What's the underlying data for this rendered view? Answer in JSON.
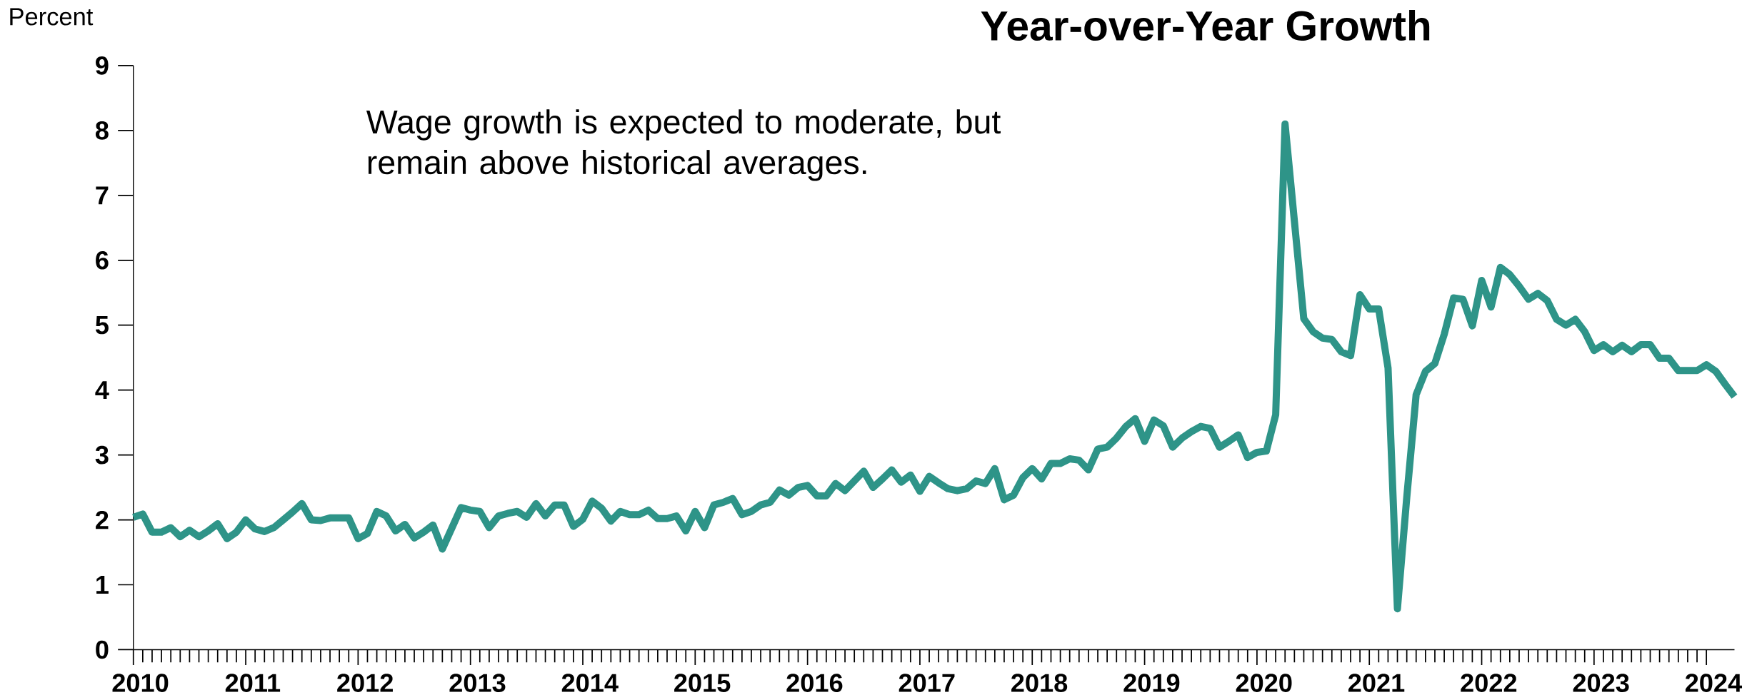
{
  "chart_data": {
    "type": "line",
    "title": "Year-over-Year Growth",
    "ylabel": "Percent",
    "annotations": [
      "Wage growth is expected to moderate, but remain above historical averages."
    ],
    "x": [
      "2010-01",
      "2010-02",
      "2010-03",
      "2010-04",
      "2010-05",
      "2010-06",
      "2010-07",
      "2010-08",
      "2010-09",
      "2010-10",
      "2010-11",
      "2010-12",
      "2011-01",
      "2011-02",
      "2011-03",
      "2011-04",
      "2011-05",
      "2011-06",
      "2011-07",
      "2011-08",
      "2011-09",
      "2011-10",
      "2011-11",
      "2011-12",
      "2012-01",
      "2012-02",
      "2012-03",
      "2012-04",
      "2012-05",
      "2012-06",
      "2012-07",
      "2012-08",
      "2012-09",
      "2012-10",
      "2012-11",
      "2012-12",
      "2013-01",
      "2013-02",
      "2013-03",
      "2013-04",
      "2013-05",
      "2013-06",
      "2013-07",
      "2013-08",
      "2013-09",
      "2013-10",
      "2013-11",
      "2013-12",
      "2014-01",
      "2014-02",
      "2014-03",
      "2014-04",
      "2014-05",
      "2014-06",
      "2014-07",
      "2014-08",
      "2014-09",
      "2014-10",
      "2014-11",
      "2014-12",
      "2015-01",
      "2015-02",
      "2015-03",
      "2015-04",
      "2015-05",
      "2015-06",
      "2015-07",
      "2015-08",
      "2015-09",
      "2015-10",
      "2015-11",
      "2015-12",
      "2016-01",
      "2016-02",
      "2016-03",
      "2016-04",
      "2016-05",
      "2016-06",
      "2016-07",
      "2016-08",
      "2016-09",
      "2016-10",
      "2016-11",
      "2016-12",
      "2017-01",
      "2017-02",
      "2017-03",
      "2017-04",
      "2017-05",
      "2017-06",
      "2017-07",
      "2017-08",
      "2017-09",
      "2017-10",
      "2017-11",
      "2017-12",
      "2018-01",
      "2018-02",
      "2018-03",
      "2018-04",
      "2018-05",
      "2018-06",
      "2018-07",
      "2018-08",
      "2018-09",
      "2018-10",
      "2018-11",
      "2018-12",
      "2019-01",
      "2019-02",
      "2019-03",
      "2019-04",
      "2019-05",
      "2019-06",
      "2019-07",
      "2019-08",
      "2019-09",
      "2019-10",
      "2019-11",
      "2019-12",
      "2020-01",
      "2020-02",
      "2020-03",
      "2020-04",
      "2020-05",
      "2020-06",
      "2020-07",
      "2020-08",
      "2020-09",
      "2020-10",
      "2020-11",
      "2020-12",
      "2021-01",
      "2021-02",
      "2021-03",
      "2021-04",
      "2021-05",
      "2021-06",
      "2021-07",
      "2021-08",
      "2021-09",
      "2021-10",
      "2021-11",
      "2021-12",
      "2022-01",
      "2022-02",
      "2022-03",
      "2022-04",
      "2022-05",
      "2022-06",
      "2022-07",
      "2022-08",
      "2022-09",
      "2022-10",
      "2022-11",
      "2022-12",
      "2023-01",
      "2023-02",
      "2023-03",
      "2023-04",
      "2023-05",
      "2023-06",
      "2023-07",
      "2023-08",
      "2023-09",
      "2023-10",
      "2023-11",
      "2023-12",
      "2024-01",
      "2024-02",
      "2024-03",
      "2024-04"
    ],
    "series": [
      {
        "color": "#2e9488",
        "values": [
          2.04,
          2.09,
          1.81,
          1.81,
          1.88,
          1.74,
          1.84,
          1.74,
          1.83,
          1.94,
          1.71,
          1.81,
          2.0,
          1.86,
          1.82,
          1.88,
          2.0,
          2.12,
          2.25,
          2.0,
          1.99,
          2.03,
          2.03,
          2.03,
          1.71,
          1.79,
          2.13,
          2.06,
          1.83,
          1.93,
          1.72,
          1.81,
          1.92,
          1.55,
          1.87,
          2.19,
          2.15,
          2.13,
          1.88,
          2.06,
          2.1,
          2.13,
          2.04,
          2.25,
          2.06,
          2.23,
          2.23,
          1.9,
          2.01,
          2.29,
          2.18,
          1.98,
          2.13,
          2.08,
          2.08,
          2.15,
          2.02,
          2.02,
          2.06,
          1.83,
          2.13,
          1.88,
          2.23,
          2.27,
          2.33,
          2.08,
          2.13,
          2.23,
          2.27,
          2.46,
          2.38,
          2.5,
          2.53,
          2.37,
          2.37,
          2.56,
          2.45,
          2.6,
          2.75,
          2.5,
          2.63,
          2.77,
          2.58,
          2.69,
          2.44,
          2.67,
          2.57,
          2.48,
          2.45,
          2.48,
          2.6,
          2.56,
          2.79,
          2.31,
          2.38,
          2.65,
          2.79,
          2.63,
          2.87,
          2.87,
          2.94,
          2.92,
          2.77,
          3.09,
          3.12,
          3.26,
          3.44,
          3.56,
          3.21,
          3.54,
          3.45,
          3.12,
          3.26,
          3.36,
          3.44,
          3.41,
          3.12,
          3.21,
          3.31,
          2.96,
          3.04,
          3.06,
          3.62,
          8.1,
          6.6,
          5.1,
          4.9,
          4.8,
          4.78,
          4.59,
          4.53,
          5.47,
          5.25,
          5.25,
          4.34,
          0.63,
          2.35,
          3.93,
          4.29,
          4.41,
          4.86,
          5.42,
          5.4,
          4.99,
          5.69,
          5.28,
          5.89,
          5.78,
          5.6,
          5.4,
          5.49,
          5.38,
          5.09,
          5.0,
          5.09,
          4.9,
          4.61,
          4.7,
          4.59,
          4.69,
          4.59,
          4.7,
          4.7,
          4.49,
          4.49,
          4.3,
          4.3,
          4.3,
          4.39,
          4.29,
          4.09,
          3.9
        ]
      }
    ],
    "xlim": [
      "2010-01",
      "2024-04"
    ],
    "xticks": [
      "2010",
      "2011",
      "2012",
      "2013",
      "2014",
      "2015",
      "2016",
      "2017",
      "2018",
      "2019",
      "2020",
      "2021",
      "2022",
      "2023",
      "2024"
    ],
    "ylim": [
      0,
      9
    ],
    "yticks": [
      0,
      1,
      2,
      3,
      4,
      5,
      6,
      7,
      8,
      9
    ],
    "grid": false,
    "legend": false,
    "marker": "none",
    "line_style": "solid"
  }
}
